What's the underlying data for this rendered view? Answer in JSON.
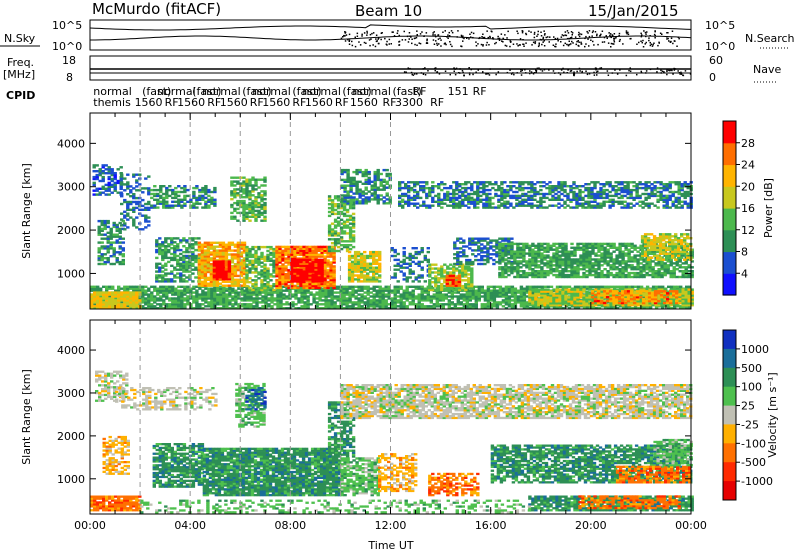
{
  "header": {
    "station": "McMurdo (fitACF)",
    "beam": "Beam 10",
    "date": "15/Jan/2015"
  },
  "top_panels": {
    "nsky_label": "N.Sky",
    "nsky_ticks": [
      "10^5",
      "10^0"
    ],
    "nsearch_label": "N.Search",
    "nsearch_ticks": [
      "10^5",
      "10^0"
    ],
    "freq_label": "Freq.",
    "freq_unit": "[MHz]",
    "freq_ticks": [
      "18",
      "8"
    ],
    "nave_label": "Nave",
    "nave_ticks": [
      "60",
      "0"
    ],
    "cpid_label": "CPID",
    "cpid_row1": [
      {
        "t": 0.05,
        "text": "normal"
      },
      {
        "t": 2.0,
        "text": "(fast)"
      },
      {
        "t": 2.6,
        "text": "normal"
      },
      {
        "t": 4.0,
        "text": "(fast)"
      },
      {
        "t": 4.4,
        "text": "normal"
      },
      {
        "t": 6.0,
        "text": "(fast)"
      },
      {
        "t": 6.4,
        "text": "normal"
      },
      {
        "t": 8.0,
        "text": "(fast)"
      },
      {
        "t": 8.4,
        "text": "normal"
      },
      {
        "t": 10.0,
        "text": "(fast)"
      },
      {
        "t": 10.4,
        "text": "normal"
      },
      {
        "t": 12.0,
        "text": "(fast)"
      },
      {
        "t": 12.8,
        "text": "RF"
      },
      {
        "t": 14.2,
        "text": "151"
      },
      {
        "t": 15.2,
        "text": "RF"
      }
    ],
    "cpid_row2": [
      {
        "t": 0.05,
        "text": "themis"
      },
      {
        "t": 1.7,
        "text": "1560"
      },
      {
        "t": 2.9,
        "text": "RF"
      },
      {
        "t": 3.4,
        "text": "1560"
      },
      {
        "t": 4.6,
        "text": "RF"
      },
      {
        "t": 5.1,
        "text": "1560"
      },
      {
        "t": 6.3,
        "text": "RF"
      },
      {
        "t": 6.8,
        "text": "1560"
      },
      {
        "t": 8.0,
        "text": "RF"
      },
      {
        "t": 8.5,
        "text": "1560"
      },
      {
        "t": 9.7,
        "text": "RF"
      },
      {
        "t": 10.3,
        "text": "1560"
      },
      {
        "t": 11.6,
        "text": "RF"
      },
      {
        "t": 12.1,
        "text": "3300"
      },
      {
        "t": 13.5,
        "text": "RF"
      }
    ]
  },
  "chart_data": [
    {
      "type": "heatmap",
      "name": "power",
      "ylabel": "Slant Range [km]",
      "ylim": [
        180,
        4700
      ],
      "yticks": [
        1000,
        2000,
        3000,
        4000
      ],
      "xlim": [
        0,
        24
      ],
      "colorbar": {
        "label": "Power [dB]",
        "range": [
          0,
          32
        ],
        "ticks": [
          "4",
          "8",
          "12",
          "16",
          "20",
          "24",
          "28"
        ],
        "colors": [
          "#1010ff",
          "#1b4fd0",
          "#2d8f55",
          "#4cb84c",
          "#c8c81e",
          "#ffb400",
          "#ff6e00",
          "#ff0000"
        ]
      },
      "blobs": [
        {
          "t0": 0.0,
          "t1": 24.0,
          "r0": 180,
          "r1": 700,
          "v": 12,
          "d": 0.8
        },
        {
          "t0": 0.0,
          "t1": 2.0,
          "r0": 180,
          "r1": 550,
          "v": 20,
          "d": 0.9
        },
        {
          "t0": 17.5,
          "t1": 24.0,
          "r0": 250,
          "r1": 650,
          "v": 17,
          "d": 0.9
        },
        {
          "t0": 20.0,
          "t1": 23.5,
          "r0": 300,
          "r1": 600,
          "v": 25,
          "d": 0.6
        },
        {
          "t0": 0.1,
          "t1": 1.2,
          "r0": 2800,
          "r1": 3500,
          "v": 7,
          "d": 0.5
        },
        {
          "t0": 0.3,
          "t1": 1.3,
          "r0": 1200,
          "r1": 2200,
          "v": 10,
          "d": 0.6
        },
        {
          "t0": 1.2,
          "t1": 2.4,
          "r0": 2000,
          "r1": 3300,
          "v": 8,
          "d": 0.4
        },
        {
          "t0": 2.4,
          "t1": 5.0,
          "r0": 2500,
          "r1": 3000,
          "v": 10,
          "d": 0.55
        },
        {
          "t0": 2.6,
          "t1": 4.3,
          "r0": 800,
          "r1": 1800,
          "v": 11,
          "d": 0.6
        },
        {
          "t0": 4.3,
          "t1": 6.2,
          "r0": 700,
          "r1": 1700,
          "v": 22,
          "d": 0.85
        },
        {
          "t0": 4.9,
          "t1": 5.6,
          "r0": 850,
          "r1": 1300,
          "v": 30,
          "d": 0.95
        },
        {
          "t0": 5.6,
          "t1": 7.0,
          "r0": 2200,
          "r1": 3200,
          "v": 13,
          "d": 0.6
        },
        {
          "t0": 6.2,
          "t1": 7.4,
          "r0": 600,
          "r1": 1600,
          "v": 14,
          "d": 0.7
        },
        {
          "t0": 7.4,
          "t1": 9.7,
          "r0": 650,
          "r1": 1600,
          "v": 26,
          "d": 0.9
        },
        {
          "t0": 8.0,
          "t1": 9.2,
          "r0": 800,
          "r1": 1300,
          "v": 31,
          "d": 0.95
        },
        {
          "t0": 9.5,
          "t1": 10.5,
          "r0": 1500,
          "r1": 2800,
          "v": 14,
          "d": 0.6
        },
        {
          "t0": 10.0,
          "t1": 12.0,
          "r0": 2600,
          "r1": 3400,
          "v": 10,
          "d": 0.6
        },
        {
          "t0": 10.3,
          "t1": 11.6,
          "r0": 800,
          "r1": 1500,
          "v": 18,
          "d": 0.8
        },
        {
          "t0": 12.0,
          "t1": 13.5,
          "r0": 800,
          "r1": 1600,
          "v": 8,
          "d": 0.4
        },
        {
          "t0": 13.5,
          "t1": 15.2,
          "r0": 600,
          "r1": 1200,
          "v": 16,
          "d": 0.75
        },
        {
          "t0": 14.2,
          "t1": 14.7,
          "r0": 700,
          "r1": 950,
          "v": 28,
          "d": 0.9
        },
        {
          "t0": 12.3,
          "t1": 24.0,
          "r0": 2500,
          "r1": 3100,
          "v": 9,
          "d": 0.6
        },
        {
          "t0": 14.5,
          "t1": 16.8,
          "r0": 1200,
          "r1": 1800,
          "v": 8,
          "d": 0.5
        },
        {
          "t0": 16.3,
          "t1": 24.0,
          "r0": 900,
          "r1": 1700,
          "v": 12,
          "d": 0.75
        },
        {
          "t0": 22.0,
          "t1": 24.0,
          "r0": 1300,
          "r1": 1900,
          "v": 18,
          "d": 0.7
        }
      ]
    },
    {
      "type": "heatmap",
      "name": "velocity",
      "ylabel": "Slant Range [km]",
      "ylim": [
        180,
        4700
      ],
      "yticks": [
        1000,
        2000,
        3000,
        4000
      ],
      "xlim": [
        0,
        24
      ],
      "xticks": [
        "00:00",
        "04:00",
        "08:00",
        "12:00",
        "16:00",
        "20:00",
        "00:00"
      ],
      "xlabel": "Time UT",
      "colorbar": {
        "label": "Velocity [m s⁻¹]",
        "ticks": [
          "1000",
          "500",
          "100",
          "25",
          "-25",
          "-100",
          "-500",
          "-1000"
        ],
        "colors": [
          "#1030c0",
          "#1a6e9a",
          "#2d8f55",
          "#4ec04e",
          "#c0c0b4",
          "#ffb000",
          "#ff7000",
          "#ff2a00",
          "#e60000"
        ]
      },
      "blobs": [
        {
          "t0": 0.0,
          "t1": 2.0,
          "r0": 250,
          "r1": 600,
          "v": 6,
          "d": 0.85
        },
        {
          "t0": 17.5,
          "t1": 24.0,
          "r0": 250,
          "r1": 600,
          "v": 2,
          "d": 0.85
        },
        {
          "t0": 19.5,
          "t1": 23.5,
          "r0": 300,
          "r1": 600,
          "v": 6,
          "d": 0.6
        },
        {
          "t0": 2.0,
          "t1": 17.5,
          "r0": 200,
          "r1": 500,
          "v": 3,
          "d": 0.3
        },
        {
          "t0": 0.2,
          "t1": 1.5,
          "r0": 2800,
          "r1": 3500,
          "v": 4,
          "d": 0.55
        },
        {
          "t0": 0.5,
          "t1": 1.5,
          "r0": 1100,
          "r1": 2000,
          "v": 5,
          "d": 0.6
        },
        {
          "t0": 2.5,
          "t1": 4.5,
          "r0": 800,
          "r1": 1800,
          "v": 2,
          "d": 0.75
        },
        {
          "t0": 4.5,
          "t1": 10.0,
          "r0": 600,
          "r1": 1700,
          "v": 2,
          "d": 0.9
        },
        {
          "t0": 5.8,
          "t1": 7.0,
          "r0": 2200,
          "r1": 3200,
          "v": 3,
          "d": 0.6
        },
        {
          "t0": 6.2,
          "t1": 7.0,
          "r0": 2600,
          "r1": 3100,
          "v": 1,
          "d": 0.6
        },
        {
          "t0": 9.5,
          "t1": 10.5,
          "r0": 1500,
          "r1": 2800,
          "v": 2,
          "d": 0.6
        },
        {
          "t0": 10.0,
          "t1": 11.5,
          "r0": 600,
          "r1": 1500,
          "v": 3,
          "d": 0.75
        },
        {
          "t0": 11.5,
          "t1": 13.0,
          "r0": 700,
          "r1": 1600,
          "v": 5,
          "d": 0.5
        },
        {
          "t0": 13.5,
          "t1": 15.5,
          "r0": 600,
          "r1": 1100,
          "v": 6,
          "d": 0.6
        },
        {
          "t0": 10.0,
          "t1": 24.0,
          "r0": 2400,
          "r1": 3200,
          "v": 4,
          "d": 0.75
        },
        {
          "t0": 1.0,
          "t1": 5.0,
          "r0": 2600,
          "r1": 3100,
          "v": 4,
          "d": 0.4
        },
        {
          "t0": 16.0,
          "t1": 24.0,
          "r0": 900,
          "r1": 1800,
          "v": 2,
          "d": 0.75
        },
        {
          "t0": 21.0,
          "t1": 24.0,
          "r0": 900,
          "r1": 1300,
          "v": 6,
          "d": 0.7
        },
        {
          "t0": 22.5,
          "t1": 24.0,
          "r0": 1300,
          "r1": 1900,
          "v": 3,
          "d": 0.6
        }
      ]
    }
  ]
}
